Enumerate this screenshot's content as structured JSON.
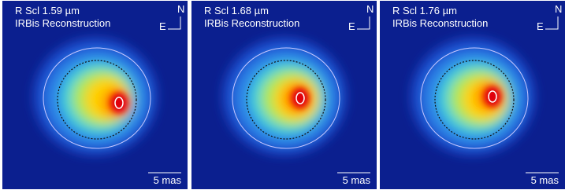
{
  "panels": [
    {
      "title": "R Scl  1.59 µm",
      "subtitle": "IRBis Reconstruction",
      "north": "N",
      "east": "E",
      "scale": "5 mas"
    },
    {
      "title": "R Scl  1.68 µm",
      "subtitle": "IRBis Reconstruction",
      "north": "N",
      "east": "E",
      "scale": "5 mas"
    },
    {
      "title": "R Scl  1.76 µm",
      "subtitle": "IRBis Reconstruction",
      "north": "N",
      "east": "E",
      "scale": "5 mas"
    }
  ]
}
